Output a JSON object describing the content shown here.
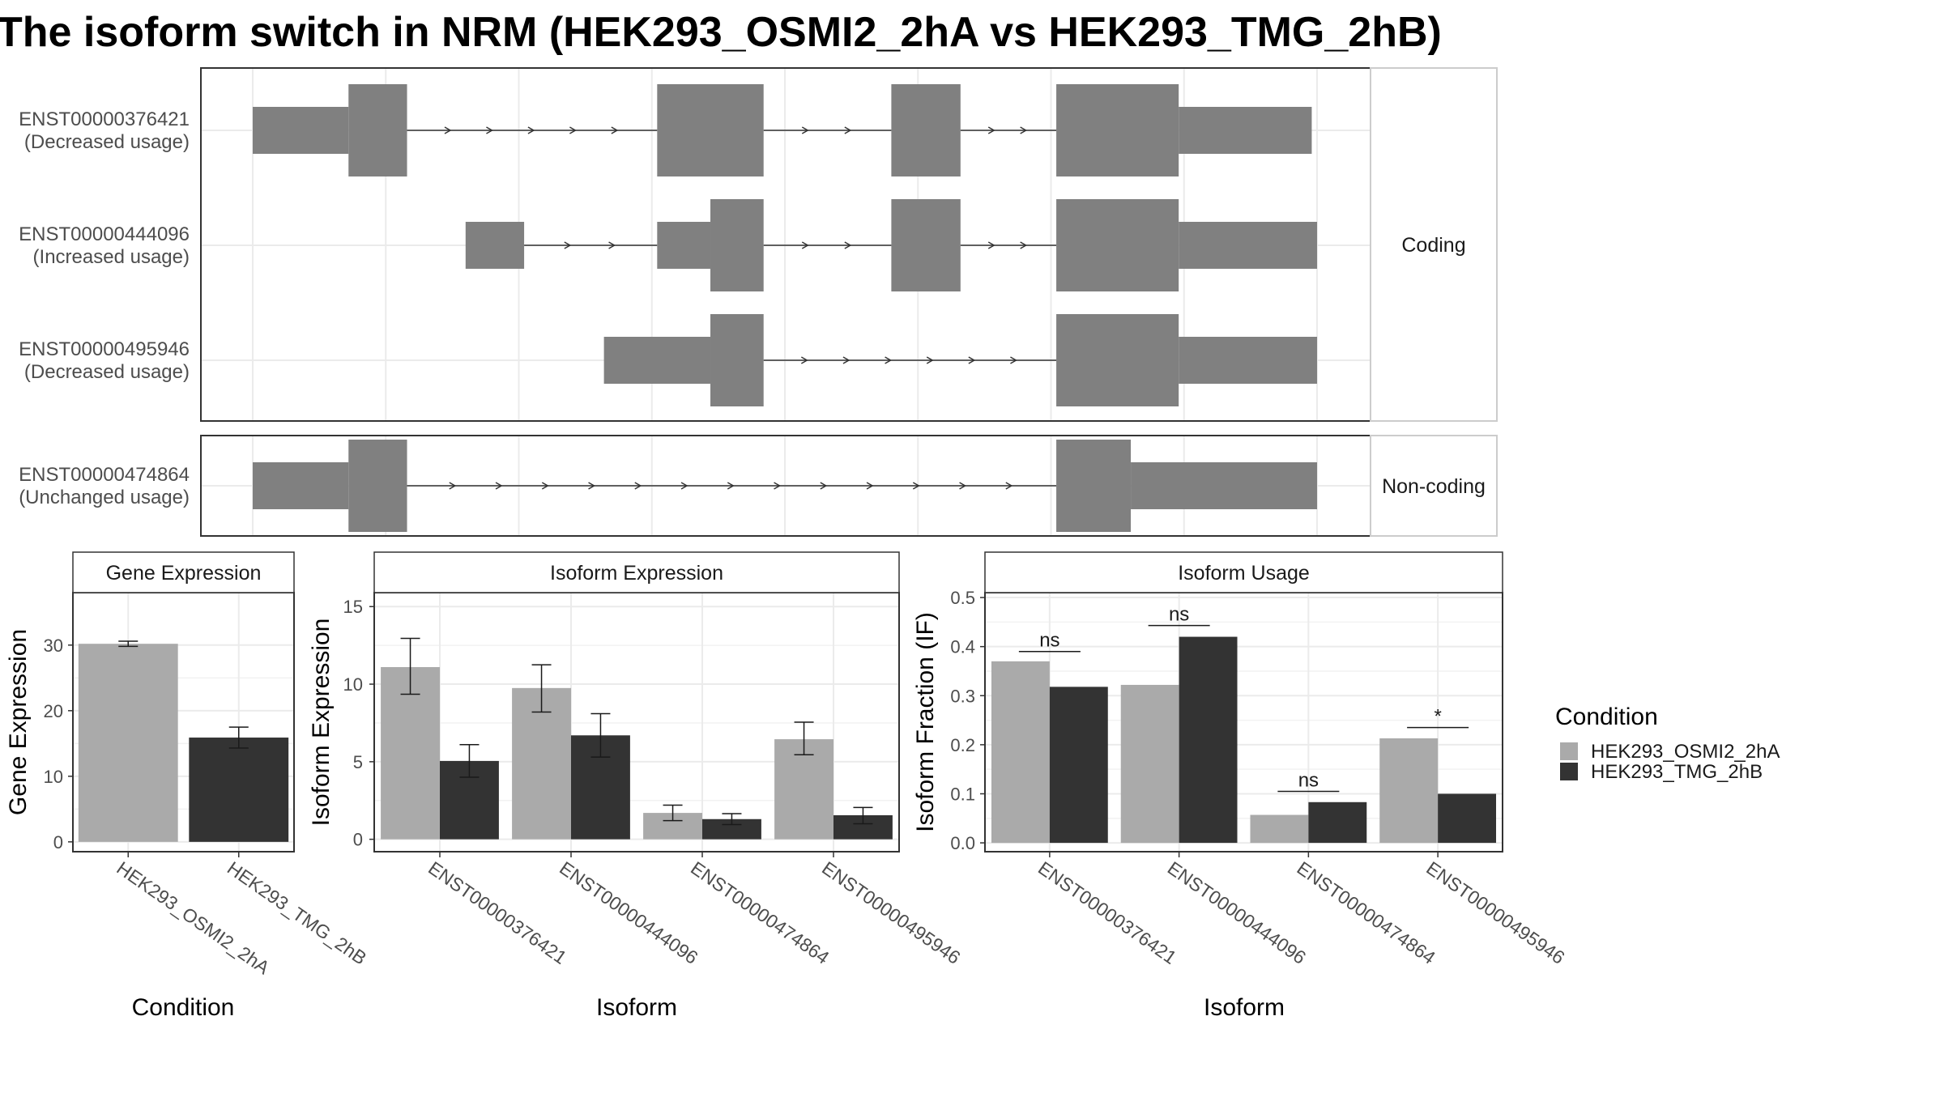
{
  "title": "The isoform switch in NRM (HEK293_OSMI2_2hA vs HEK293_TMG_2hB)",
  "colors": {
    "cond_a": "#aaaaaa",
    "cond_b": "#333333",
    "feature": "#808080",
    "panel_border": "#333333",
    "strip_fill": "#ffffff",
    "grid": "#ebebeb"
  },
  "transcripts": {
    "panels": [
      {
        "label": "Coding",
        "rows": [
          {
            "id": "ENST00000376421",
            "usage": "(Decreased usage)",
            "exons": [
              {
                "s": 0,
                "e": 18,
                "cds": false
              },
              {
                "s": 18,
                "e": 29,
                "cds": true
              },
              {
                "s": 76,
                "e": 96,
                "cds": true
              },
              {
                "s": 120,
                "e": 133,
                "cds": true
              },
              {
                "s": 151,
                "e": 174,
                "cds": true
              },
              {
                "s": 174,
                "e": 199,
                "cds": false
              }
            ]
          },
          {
            "id": "ENST00000444096",
            "usage": "(Increased usage)",
            "exons": [
              {
                "s": 40,
                "e": 51,
                "cds": false
              },
              {
                "s": 76,
                "e": 86,
                "cds": false
              },
              {
                "s": 86,
                "e": 96,
                "cds": true
              },
              {
                "s": 120,
                "e": 133,
                "cds": true
              },
              {
                "s": 151,
                "e": 174,
                "cds": true
              },
              {
                "s": 174,
                "e": 200,
                "cds": false
              }
            ]
          },
          {
            "id": "ENST00000495946",
            "usage": "(Decreased usage)",
            "exons": [
              {
                "s": 66,
                "e": 86,
                "cds": false
              },
              {
                "s": 86,
                "e": 96,
                "cds": true
              },
              {
                "s": 151,
                "e": 174,
                "cds": true
              },
              {
                "s": 174,
                "e": 200,
                "cds": false
              }
            ]
          }
        ]
      },
      {
        "label": "Non-coding",
        "rows": [
          {
            "id": "ENST00000474864",
            "usage": "(Unchanged usage)",
            "exons": [
              {
                "s": 0,
                "e": 18,
                "cds": false
              },
              {
                "s": 18,
                "e": 29,
                "cds": true
              },
              {
                "s": 151,
                "e": 165,
                "cds": true
              },
              {
                "s": 165,
                "e": 200,
                "cds": false
              }
            ]
          }
        ]
      }
    ]
  },
  "legend": {
    "title": "Condition",
    "items": [
      {
        "label": "HEK293_OSMI2_2hA",
        "color": "#aaaaaa"
      },
      {
        "label": "HEK293_TMG_2hB",
        "color": "#333333"
      }
    ]
  },
  "chart_data": [
    {
      "type": "bar",
      "strip": "Gene Expression",
      "xlabel": "Condition",
      "ylabel": "Gene Expression",
      "categories": [
        "HEK293_OSMI2_2hA",
        "HEK293_TMG_2hB"
      ],
      "values": [
        30.2,
        15.9
      ],
      "err_low": [
        29.8,
        14.3
      ],
      "err_high": [
        30.6,
        17.5
      ],
      "colors": [
        "#aaaaaa",
        "#333333"
      ],
      "ylim": [
        -1.5,
        38
      ],
      "yticks": [
        0,
        10,
        20,
        30
      ]
    },
    {
      "type": "bar",
      "strip": "Isoform Expression",
      "xlabel": "Isoform",
      "ylabel": "Isoform Expression",
      "categories": [
        "ENST00000376421",
        "ENST00000444096",
        "ENST00000474864",
        "ENST00000495946"
      ],
      "series": [
        {
          "condition": "HEK293_OSMI2_2hA",
          "values": [
            11.1,
            9.75,
            1.7,
            6.45
          ],
          "err_low": [
            9.35,
            8.2,
            1.2,
            5.45
          ],
          "err_high": [
            12.95,
            11.25,
            2.2,
            7.55
          ]
        },
        {
          "condition": "HEK293_TMG_2hB",
          "values": [
            5.05,
            6.7,
            1.3,
            1.55
          ],
          "err_low": [
            4.0,
            5.3,
            0.95,
            1.0
          ],
          "err_high": [
            6.1,
            8.1,
            1.65,
            2.05
          ]
        }
      ],
      "ylim": [
        -0.8,
        15.9
      ],
      "yticks": [
        0,
        5,
        10,
        15
      ]
    },
    {
      "type": "bar",
      "strip": "Isoform Usage",
      "xlabel": "Isoform",
      "ylabel": "Isoform Fraction (IF)",
      "categories": [
        "ENST00000376421",
        "ENST00000444096",
        "ENST00000474864",
        "ENST00000495946"
      ],
      "series": [
        {
          "condition": "HEK293_OSMI2_2hA",
          "values": [
            0.37,
            0.322,
            0.057,
            0.213
          ]
        },
        {
          "condition": "HEK293_TMG_2hB",
          "values": [
            0.318,
            0.42,
            0.083,
            0.1
          ]
        }
      ],
      "significance": [
        {
          "label": "ns",
          "y": 0.39
        },
        {
          "label": "ns",
          "y": 0.443
        },
        {
          "label": "ns",
          "y": 0.105
        },
        {
          "label": "*",
          "y": 0.235
        }
      ],
      "ylim": [
        -0.018,
        0.51
      ],
      "yticks": [
        0.0,
        0.1,
        0.2,
        0.3,
        0.4,
        0.5
      ],
      "ytick_labels": [
        "0.0",
        "0.1",
        "0.2",
        "0.3",
        "0.4",
        "0.5"
      ]
    }
  ]
}
